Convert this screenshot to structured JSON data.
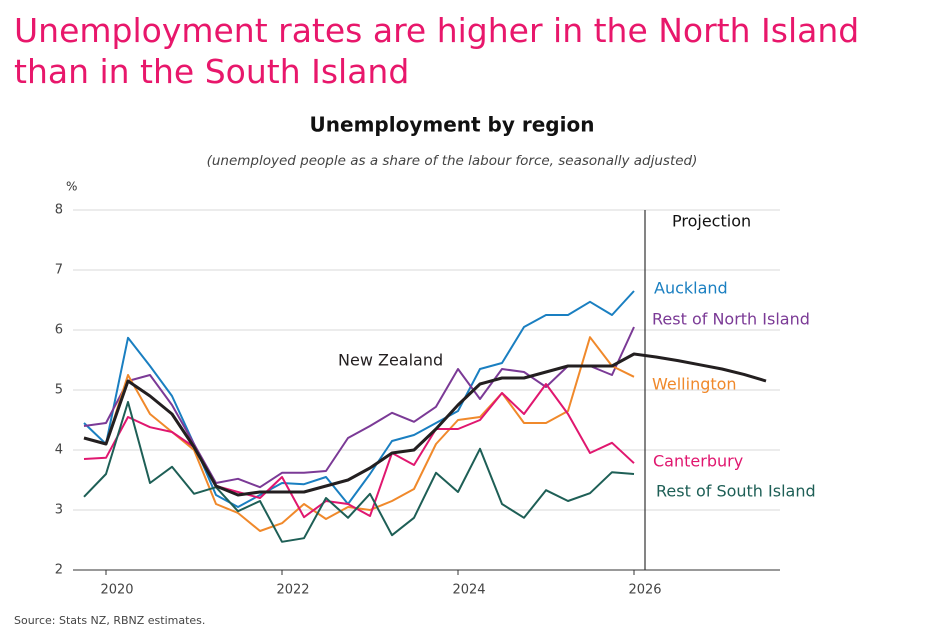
{
  "chart_data": {
    "type": "line",
    "title": "Unemployment rates are higher in the North Island than in the South Island",
    "subtitle": "Unemployment by region",
    "note": "(unemployed people as a share of the labour force, seasonally adjusted)",
    "y_unit": "%",
    "annotation": "Projection",
    "projection_start": 2026.125,
    "source": "Source: Stats NZ, RBNZ estimates.",
    "x": [
      2019.75,
      2020,
      2020.25,
      2020.5,
      2020.75,
      2021,
      2021.25,
      2021.5,
      2021.75,
      2022,
      2022.25,
      2022.5,
      2022.75,
      2023,
      2023.25,
      2023.5,
      2023.75,
      2024,
      2024.25,
      2024.5,
      2024.75,
      2025,
      2025.25,
      2025.5,
      2025.75,
      2026,
      2026.25,
      2026.5,
      2026.75,
      2027,
      2027.25,
      2027.5
    ],
    "xlim": [
      2019.625,
      2027.625
    ],
    "xticks": [
      2020,
      2022,
      2024,
      2026
    ],
    "ylim": [
      2,
      8
    ],
    "yticks": [
      2,
      3,
      4,
      5,
      6,
      7,
      8
    ],
    "grid": true,
    "series": [
      {
        "name": "Auckland",
        "color": "#1a7fc1",
        "values": [
          4.45,
          4.1,
          5.87,
          5.4,
          4.9,
          4.1,
          3.25,
          3.05,
          3.25,
          3.45,
          3.43,
          3.55,
          3.1,
          3.6,
          4.15,
          4.25,
          4.45,
          4.65,
          5.35,
          5.45,
          6.05,
          6.25,
          6.25,
          6.47,
          6.25,
          6.65,
          null,
          null,
          null,
          null,
          null,
          null
        ]
      },
      {
        "name": "Rest of North Island",
        "color": "#7b3a96",
        "values": [
          4.4,
          4.45,
          5.15,
          5.25,
          4.75,
          4.1,
          3.45,
          3.52,
          3.38,
          3.62,
          3.62,
          3.65,
          4.2,
          4.4,
          4.62,
          4.47,
          4.72,
          5.35,
          4.85,
          5.35,
          5.3,
          5.05,
          5.4,
          5.4,
          5.25,
          6.05,
          null,
          null,
          null,
          null,
          null,
          null
        ]
      },
      {
        "name": "Wellington",
        "color": "#f0892b",
        "values": [
          4.2,
          4.1,
          5.25,
          4.6,
          4.3,
          4.0,
          3.1,
          2.95,
          2.65,
          2.78,
          3.1,
          2.85,
          3.05,
          3.0,
          3.15,
          3.35,
          4.1,
          4.5,
          4.55,
          4.95,
          4.45,
          4.45,
          4.65,
          5.88,
          5.4,
          5.22,
          null,
          null,
          null,
          null,
          null,
          null
        ]
      },
      {
        "name": "Canterbury",
        "color": "#e0176f",
        "values": [
          3.85,
          3.87,
          4.55,
          4.38,
          4.3,
          4.05,
          3.4,
          3.3,
          3.2,
          3.55,
          2.88,
          3.15,
          3.1,
          2.9,
          3.95,
          3.75,
          4.35,
          4.35,
          4.5,
          4.95,
          4.6,
          5.1,
          4.6,
          3.95,
          4.12,
          3.78,
          null,
          null,
          null,
          null,
          null,
          null
        ]
      },
      {
        "name": "Rest of South Island",
        "color": "#1e5f56",
        "values": [
          3.22,
          3.6,
          4.8,
          3.45,
          3.72,
          3.27,
          3.38,
          2.98,
          3.15,
          2.47,
          2.53,
          3.2,
          2.87,
          3.27,
          2.58,
          2.87,
          3.62,
          3.3,
          4.02,
          3.1,
          2.87,
          3.33,
          3.15,
          3.28,
          3.63,
          3.6,
          null,
          null,
          null,
          null,
          null,
          null
        ]
      },
      {
        "name": "New Zealand",
        "color": "#231f20",
        "values": [
          4.2,
          4.1,
          5.15,
          4.9,
          4.6,
          4.05,
          3.4,
          3.25,
          3.3,
          3.3,
          3.3,
          3.4,
          3.5,
          3.7,
          3.95,
          4.0,
          4.35,
          4.75,
          5.1,
          5.2,
          5.2,
          5.3,
          5.4,
          5.4,
          5.4,
          5.6,
          5.55,
          5.49,
          5.42,
          5.35,
          5.26,
          5.15
        ]
      }
    ]
  }
}
